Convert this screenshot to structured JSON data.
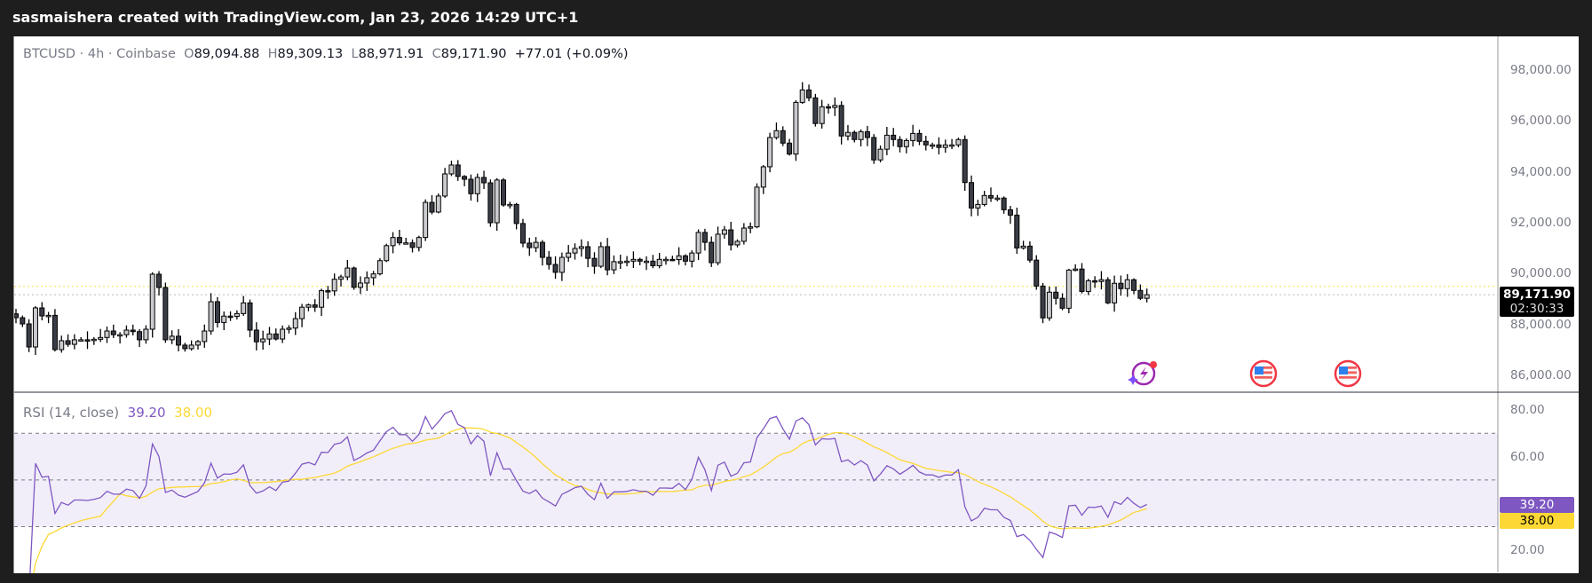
{
  "topbar": {
    "title": "sasmaishera created with TradingView.com, Jan 23, 2026 14:29 UTC+1"
  },
  "legend": {
    "symbol": "BTCUSD · 4h · Coinbase",
    "o_label": "O",
    "o": "89,094.88",
    "h_label": "H",
    "h": "89,309.13",
    "l_label": "L",
    "l": "88,971.91",
    "c_label": "C",
    "c": "89,171.90",
    "change": "+77.01 (+0.09%)"
  },
  "price_axis": {
    "ticks": [
      "98,000.00",
      "96,000.00",
      "94,000.00",
      "92,000.00",
      "90,000.00",
      "88,000.00",
      "86,000.00"
    ],
    "last_price": "89,171.90",
    "countdown": "02:30:33"
  },
  "rsi": {
    "label": "RSI (14, close)",
    "value": "39.20",
    "ma_value": "38.00",
    "ticks": [
      "80.00",
      "60.00",
      "20.00"
    ],
    "line_color": "#7e57c2",
    "ma_color": "#fdd835"
  },
  "events": [
    {
      "icon": "lightning-event-icon"
    },
    {
      "icon": "us-flag-icon"
    },
    {
      "icon": "us-flag-icon"
    }
  ],
  "colors": {
    "bull": "#c9cacd",
    "bear": "#3a3d45",
    "border": "#000000"
  },
  "chart_data": {
    "type": "candlestick",
    "symbol": "BTCUSD",
    "interval": "4h",
    "ylim": [
      85500,
      98800
    ],
    "last_price": 89171.9,
    "reference_line": 89500,
    "closes": [
      88268,
      88024,
      87117,
      88652,
      88338,
      88360,
      87013,
      87362,
      87220,
      87400,
      87400,
      87380,
      87420,
      87490,
      87745,
      87600,
      87600,
      87780,
      87720,
      87400,
      87815,
      89978,
      89455,
      87400,
      87540,
      87190,
      87050,
      87190,
      87330,
      87745,
      88896,
      88080,
      88330,
      88320,
      88430,
      88850,
      87780,
      87320,
      87430,
      87630,
      87430,
      87815,
      87860,
      88230,
      88680,
      88770,
      88680,
      89330,
      89320,
      89780,
      89870,
      90220,
      89460,
      89630,
      89840,
      89990,
      90510,
      91100,
      91420,
      91210,
      91210,
      91030,
      91420,
      92800,
      92420,
      93050,
      93920,
      94270,
      93820,
      93710,
      93140,
      93780,
      93570,
      92000,
      93680,
      92700,
      92720,
      91970,
      91200,
      91020,
      91230,
      90640,
      90360,
      90050,
      90640,
      90810,
      90990,
      91060,
      90600,
      90290,
      91060,
      90150,
      90470,
      90470,
      90490,
      90560,
      90490,
      90490,
      90310,
      90560,
      90560,
      90550,
      90700,
      90490,
      90810,
      91620,
      91230,
      90430,
      91550,
      91720,
      91130,
      91270,
      91790,
      91840,
      93400,
      94200,
      95350,
      95620,
      95130,
      94700,
      96730,
      97220,
      96910,
      95900,
      96560,
      96530,
      96610,
      95410,
      95550,
      95270,
      95580,
      95350,
      94470,
      94890,
      95440,
      95270,
      94990,
      95230,
      95510,
      95200,
      95060,
      95060,
      94960,
      95060,
      95060,
      95270,
      93580,
      92580,
      92720,
      93070,
      92970,
      92970,
      92510,
      92300,
      91010,
      91080,
      90530,
      89510,
      88260,
      89270,
      89030,
      88640,
      90140,
      90180,
      89300,
      89720,
      89690,
      89760,
      88850,
      89620,
      89410,
      89760,
      89340,
      89030,
      89171.9
    ],
    "rsi": {
      "period": 14,
      "source": "close",
      "levels": [
        70,
        50,
        30
      ],
      "ylim": [
        10,
        90
      ]
    }
  }
}
